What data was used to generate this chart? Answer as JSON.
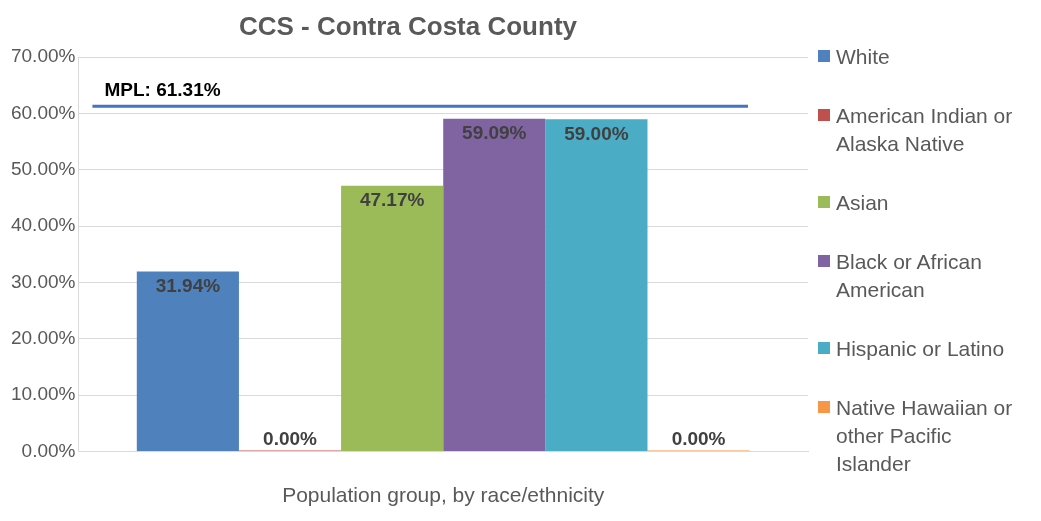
{
  "chart_data": {
    "type": "bar",
    "title": "CCS - Contra Costa County",
    "xlabel": "Population group, by race/ethnicity",
    "categories": [
      null
    ],
    "series": [
      {
        "name": "White",
        "color": "#4f81bd",
        "values": [
          31.94
        ],
        "value_labels": [
          "31.94%"
        ]
      },
      {
        "name": "American Indian or Alaska Native",
        "color": "#c0504d",
        "values": [
          0
        ],
        "value_labels": [
          "0.00%"
        ]
      },
      {
        "name": "Asian",
        "color": "#9bbb59",
        "values": [
          47.17
        ],
        "value_labels": [
          "47.17%"
        ]
      },
      {
        "name": "Black or African American",
        "color": "#8064a2",
        "values": [
          59.09
        ],
        "value_labels": [
          "59.09%"
        ]
      },
      {
        "name": "Hispanic or Latino",
        "color": "#4bacc6",
        "values": [
          59.0
        ],
        "value_labels": [
          "59.00%"
        ]
      },
      {
        "name": "Native Hawaiian or other Pacific Islander",
        "color": "#f79646",
        "values": [
          0
        ],
        "value_labels": [
          "0.00%"
        ]
      }
    ],
    "ylim": [
      0,
      70
    ],
    "yticks": [
      {
        "value": 0,
        "label": "0.00%"
      },
      {
        "value": 10,
        "label": "10.00%"
      },
      {
        "value": 20,
        "label": "20.00%"
      },
      {
        "value": 30,
        "label": "30.00%"
      },
      {
        "value": 40,
        "label": "40.00%"
      },
      {
        "value": 50,
        "label": "50.00%"
      },
      {
        "value": 60,
        "label": "60.00%"
      },
      {
        "value": 70,
        "label": "70.00%"
      }
    ],
    "ref_lines": [
      {
        "axis": "y",
        "value": 61.31,
        "label": "MPL: 61.31%",
        "color": "#4472c4"
      }
    ],
    "grid": "y",
    "legend": "right"
  }
}
